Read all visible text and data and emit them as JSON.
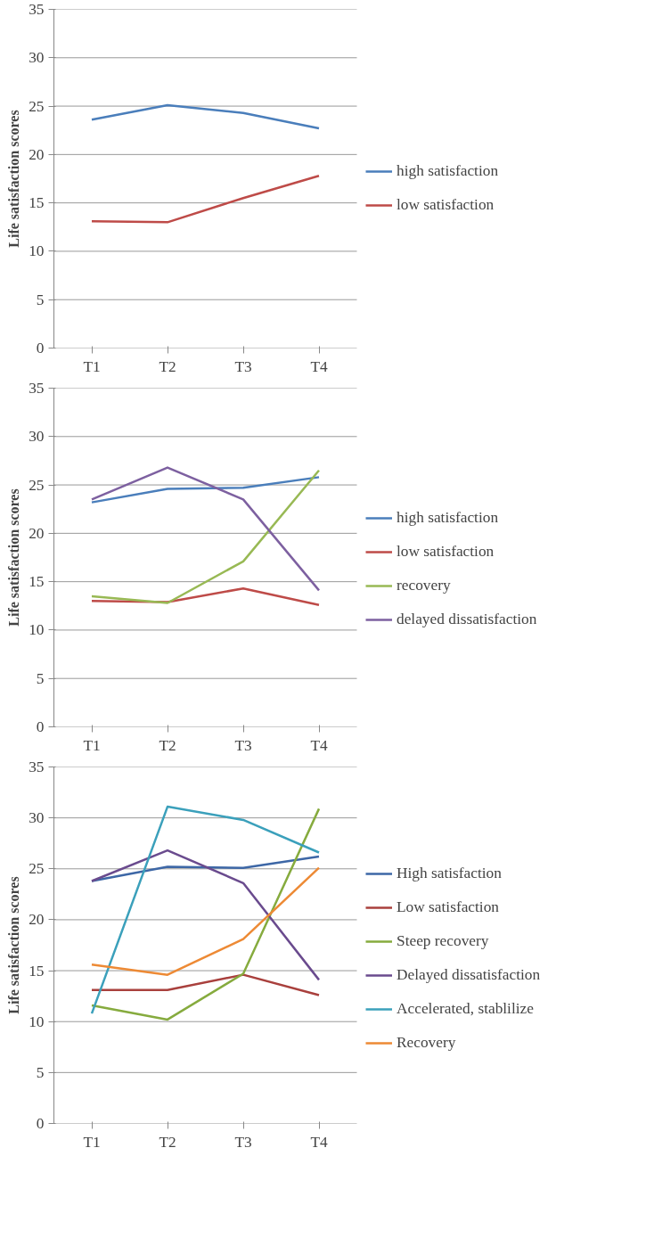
{
  "chart_data": [
    {
      "type": "line",
      "ylabel": "Life satisfaction scores",
      "categories": [
        "T1",
        "T2",
        "T3",
        "T4"
      ],
      "ylim": [
        0,
        35
      ],
      "yticks": [
        0,
        5,
        10,
        15,
        20,
        25,
        30,
        35
      ],
      "grid": "y",
      "legend": "right",
      "series": [
        {
          "name": "high satisfaction",
          "color": "#4a7ebb",
          "values": [
            23.6,
            25.1,
            24.3,
            22.7
          ]
        },
        {
          "name": "low satisfaction",
          "color": "#be4b48",
          "values": [
            13.1,
            13.0,
            15.5,
            17.8
          ]
        }
      ]
    },
    {
      "type": "line",
      "ylabel": "Life satisfaction scores",
      "categories": [
        "T1",
        "T2",
        "T3",
        "T4"
      ],
      "ylim": [
        0,
        35
      ],
      "yticks": [
        0,
        5,
        10,
        15,
        20,
        25,
        30,
        35
      ],
      "grid": "y",
      "legend": "right",
      "series": [
        {
          "name": "high satisfaction",
          "color": "#4a7ebb",
          "values": [
            23.2,
            24.6,
            24.7,
            25.8
          ]
        },
        {
          "name": "low satisfaction",
          "color": "#be4b48",
          "values": [
            13.0,
            12.9,
            14.3,
            12.6
          ]
        },
        {
          "name": "recovery",
          "color": "#98b954",
          "values": [
            13.5,
            12.8,
            17.1,
            26.5
          ]
        },
        {
          "name": "delayed dissatisfaction",
          "color": "#7d60a0",
          "values": [
            23.5,
            26.8,
            23.5,
            14.1
          ]
        }
      ]
    },
    {
      "type": "line",
      "ylabel": "Life satisfaction scores",
      "categories": [
        "T1",
        "T2",
        "T3",
        "T4"
      ],
      "ylim": [
        0,
        35
      ],
      "yticks": [
        0,
        5,
        10,
        15,
        20,
        25,
        30,
        35
      ],
      "grid": "y",
      "legend": "right",
      "series": [
        {
          "name": "High satisfaction",
          "color": "#3d67a6",
          "values": [
            23.8,
            25.2,
            25.1,
            26.2
          ]
        },
        {
          "name": "Low satisfaction",
          "color": "#a9403d",
          "values": [
            13.1,
            13.1,
            14.6,
            12.6
          ]
        },
        {
          "name": "Steep recovery",
          "color": "#86ab3e",
          "values": [
            11.6,
            10.2,
            14.7,
            30.9
          ]
        },
        {
          "name": "Delayed dissatisfaction",
          "color": "#6a4b8e",
          "values": [
            23.8,
            26.8,
            23.6,
            14.1
          ]
        },
        {
          "name": "Accelerated, stablilize",
          "color": "#3ba0bb",
          "values": [
            10.8,
            31.1,
            29.8,
            26.6
          ]
        },
        {
          "name": "Recovery",
          "color": "#ed8a35",
          "values": [
            15.6,
            14.6,
            18.1,
            25.1
          ]
        }
      ]
    }
  ]
}
